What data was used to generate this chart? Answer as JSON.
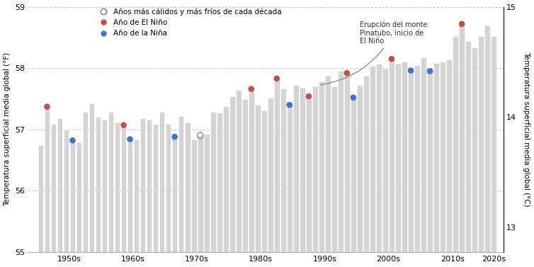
{
  "years": [
    1950,
    1951,
    1952,
    1953,
    1954,
    1955,
    1956,
    1957,
    1958,
    1959,
    1960,
    1961,
    1962,
    1963,
    1964,
    1965,
    1966,
    1967,
    1968,
    1969,
    1970,
    1971,
    1972,
    1973,
    1974,
    1975,
    1976,
    1977,
    1978,
    1979,
    1980,
    1981,
    1982,
    1983,
    1984,
    1985,
    1986,
    1987,
    1988,
    1989,
    1990,
    1991,
    1992,
    1993,
    1994,
    1995,
    1996,
    1997,
    1998,
    1999,
    2000,
    2001,
    2002,
    2003,
    2004,
    2005,
    2006,
    2007,
    2008,
    2009,
    2010,
    2011,
    2012,
    2013,
    2014,
    2015,
    2016,
    2017,
    2018,
    2019,
    2020,
    2021
  ],
  "temps_F": [
    56.74,
    57.37,
    57.09,
    57.18,
    57.0,
    56.82,
    56.79,
    57.28,
    57.42,
    57.2,
    57.16,
    57.28,
    57.11,
    57.07,
    56.84,
    56.84,
    57.18,
    57.16,
    57.09,
    57.29,
    57.09,
    56.88,
    57.22,
    57.11,
    56.84,
    56.9,
    56.93,
    57.29,
    57.27,
    57.38,
    57.54,
    57.64,
    57.49,
    57.66,
    57.4,
    57.31,
    57.52,
    57.83,
    57.67,
    57.4,
    57.72,
    57.68,
    57.54,
    57.7,
    57.78,
    57.88,
    57.7,
    57.96,
    57.92,
    57.52,
    57.72,
    57.87,
    58.04,
    58.07,
    57.99,
    58.15,
    58.07,
    58.1,
    57.96,
    58.05,
    58.17,
    57.95,
    58.08,
    58.1,
    58.14,
    58.52,
    58.72,
    58.44,
    58.34,
    58.52,
    58.7,
    58.52
  ],
  "el_nino_years": [
    1951,
    1963,
    1983,
    1987,
    1992,
    1998,
    2005,
    2016
  ],
  "la_nina_years": [
    1955,
    1964,
    1971,
    1989,
    1999,
    2008,
    2011
  ],
  "open_circle_years": [
    1975
  ],
  "pinatubo_year": 1992,
  "pinatubo_text": "Erupción del monte\nPinatubo, inicio de\nEl Niño",
  "title_left_y": "Temperatura superficial media global (°F)",
  "title_right_y": "Temperatura superficial media global (°C)",
  "ylim_F": [
    55,
    59
  ],
  "yticks_F": [
    55,
    56,
    57,
    58,
    59
  ],
  "yticks_C": [
    13,
    14,
    15
  ],
  "bar_color": "#d4d4d4",
  "bar_edge_color": "#d4d4d4",
  "el_nino_color": "#c0504d",
  "la_nina_color": "#4472c4",
  "grid_color": "#cccccc",
  "legend_label_warm_cold": "Años más cálidos y más fríos de cada década",
  "legend_label_nino": "Año de El Niño",
  "legend_label_nina": "Año de la Niña",
  "decade_labels": [
    "1950s",
    "1960s",
    "1970s",
    "1980s",
    "1990s",
    "2000s",
    "2010s",
    "2020s"
  ]
}
